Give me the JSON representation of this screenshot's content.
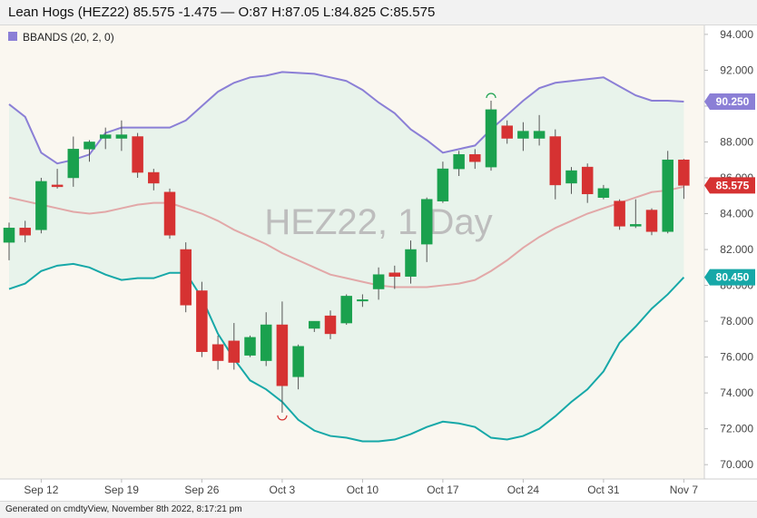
{
  "header": {
    "title": "Lean Hogs (HEZ22) 85.575 -1.475 — O:87 H:87.05 L:84.825 C:85.575"
  },
  "footer": {
    "text": "Generated on cmdtyView, November 8th 2022, 8:17:21 pm"
  },
  "watermark": "HEZ22, 1 Day",
  "legend": {
    "label": "BBANDS (20, 2, 0)",
    "swatch_color": "#8b7fd6"
  },
  "colors": {
    "up": "#1aa14e",
    "down": "#d63232",
    "upper_band": "#8b7fd6",
    "lower_band": "#16a8a8",
    "middle_band": "#e2a8a8",
    "band_fill": "#e4f2ea",
    "plot_bg": "#faf7f0",
    "wick": "#555555",
    "price_tag": "#d63232"
  },
  "price_tags": [
    {
      "value": 90.25,
      "label": "90.250",
      "color": "#8b7fd6"
    },
    {
      "value": 85.575,
      "label": "85.575",
      "color": "#d63232"
    },
    {
      "value": 80.45,
      "label": "80.450",
      "color": "#16a8a8"
    }
  ],
  "chart_data": {
    "type": "candlestick",
    "ylim": [
      69.2,
      94.5
    ],
    "y_ticks": [
      70,
      72,
      74,
      76,
      78,
      80,
      82,
      84,
      86,
      88,
      90,
      92,
      94
    ],
    "y_tick_labels": [
      "70.000",
      "72.000",
      "74.000",
      "76.000",
      "78.000",
      "80.000",
      "82.000",
      "84.000",
      "86.000",
      "88.000",
      "90.000",
      "92.000",
      "94.000"
    ],
    "x_tick_labels": [
      "Sep 12",
      "Sep 19",
      "Sep 26",
      "Oct 3",
      "Oct 10",
      "Oct 17",
      "Oct 24",
      "Oct 31",
      "Nov 7"
    ],
    "x_tick_dates": [
      "2022-09-12",
      "2022-09-19",
      "2022-09-26",
      "2022-10-03",
      "2022-10-10",
      "2022-10-17",
      "2022-10-24",
      "2022-10-31",
      "2022-11-07"
    ],
    "candles": [
      {
        "date": "2022-09-08",
        "o": 82.4,
        "h": 83.5,
        "l": 81.4,
        "c": 83.2
      },
      {
        "date": "2022-09-09",
        "o": 83.2,
        "h": 83.6,
        "l": 82.4,
        "c": 82.8
      },
      {
        "date": "2022-09-12",
        "o": 83.1,
        "h": 86.0,
        "l": 82.9,
        "c": 85.8
      },
      {
        "date": "2022-09-13",
        "o": 85.6,
        "h": 86.5,
        "l": 85.4,
        "c": 85.5
      },
      {
        "date": "2022-09-14",
        "o": 86.0,
        "h": 88.3,
        "l": 85.5,
        "c": 87.6
      },
      {
        "date": "2022-09-15",
        "o": 87.6,
        "h": 88.1,
        "l": 86.9,
        "c": 88.0
      },
      {
        "date": "2022-09-16",
        "o": 88.2,
        "h": 88.8,
        "l": 87.6,
        "c": 88.4
      },
      {
        "date": "2022-09-19",
        "o": 88.2,
        "h": 89.2,
        "l": 87.5,
        "c": 88.4
      },
      {
        "date": "2022-09-20",
        "o": 88.3,
        "h": 88.5,
        "l": 86.0,
        "c": 86.3
      },
      {
        "date": "2022-09-21",
        "o": 86.3,
        "h": 86.5,
        "l": 85.3,
        "c": 85.7
      },
      {
        "date": "2022-09-22",
        "o": 85.2,
        "h": 85.4,
        "l": 82.6,
        "c": 82.8
      },
      {
        "date": "2022-09-23",
        "o": 82.0,
        "h": 82.4,
        "l": 78.5,
        "c": 78.9
      },
      {
        "date": "2022-09-26",
        "o": 79.7,
        "h": 80.2,
        "l": 76.0,
        "c": 76.3
      },
      {
        "date": "2022-09-27",
        "o": 76.7,
        "h": 77.2,
        "l": 75.3,
        "c": 75.8
      },
      {
        "date": "2022-09-28",
        "o": 76.9,
        "h": 77.9,
        "l": 75.3,
        "c": 75.7
      },
      {
        "date": "2022-09-29",
        "o": 76.1,
        "h": 77.2,
        "l": 76.0,
        "c": 77.1
      },
      {
        "date": "2022-09-30",
        "o": 75.8,
        "h": 78.5,
        "l": 75.5,
        "c": 77.8
      },
      {
        "date": "2022-10-03",
        "o": 77.8,
        "h": 79.1,
        "l": 72.9,
        "c": 74.4
      },
      {
        "date": "2022-10-04",
        "o": 74.9,
        "h": 76.7,
        "l": 74.2,
        "c": 76.6
      },
      {
        "date": "2022-10-05",
        "o": 77.6,
        "h": 78.0,
        "l": 77.4,
        "c": 78.0
      },
      {
        "date": "2022-10-06",
        "o": 78.3,
        "h": 78.6,
        "l": 77.0,
        "c": 77.3
      },
      {
        "date": "2022-10-07",
        "o": 77.9,
        "h": 79.5,
        "l": 77.8,
        "c": 79.4
      },
      {
        "date": "2022-10-10",
        "o": 79.2,
        "h": 79.5,
        "l": 78.8,
        "c": 79.2
      },
      {
        "date": "2022-10-11",
        "o": 79.8,
        "h": 81.0,
        "l": 79.2,
        "c": 80.6
      },
      {
        "date": "2022-10-12",
        "o": 80.7,
        "h": 81.1,
        "l": 79.8,
        "c": 80.5
      },
      {
        "date": "2022-10-13",
        "o": 80.5,
        "h": 82.5,
        "l": 80.1,
        "c": 82.0
      },
      {
        "date": "2022-10-14",
        "o": 82.3,
        "h": 84.9,
        "l": 81.3,
        "c": 84.8
      },
      {
        "date": "2022-10-17",
        "o": 84.7,
        "h": 86.9,
        "l": 84.6,
        "c": 86.5
      },
      {
        "date": "2022-10-18",
        "o": 86.5,
        "h": 87.5,
        "l": 86.1,
        "c": 87.3
      },
      {
        "date": "2022-10-19",
        "o": 87.3,
        "h": 87.6,
        "l": 86.5,
        "c": 86.9
      },
      {
        "date": "2022-10-20",
        "o": 86.6,
        "h": 90.3,
        "l": 86.4,
        "c": 89.8
      },
      {
        "date": "2022-10-21",
        "o": 88.9,
        "h": 89.2,
        "l": 87.9,
        "c": 88.2
      },
      {
        "date": "2022-10-24",
        "o": 88.2,
        "h": 89.1,
        "l": 87.5,
        "c": 88.6
      },
      {
        "date": "2022-10-25",
        "o": 88.2,
        "h": 89.5,
        "l": 87.8,
        "c": 88.6
      },
      {
        "date": "2022-10-26",
        "o": 88.3,
        "h": 88.7,
        "l": 84.8,
        "c": 85.6
      },
      {
        "date": "2022-10-27",
        "o": 85.7,
        "h": 86.6,
        "l": 85.1,
        "c": 86.4
      },
      {
        "date": "2022-10-28",
        "o": 86.6,
        "h": 86.8,
        "l": 84.6,
        "c": 85.1
      },
      {
        "date": "2022-10-31",
        "o": 84.9,
        "h": 85.6,
        "l": 84.8,
        "c": 85.4
      },
      {
        "date": "2022-11-01",
        "o": 84.7,
        "h": 84.8,
        "l": 83.1,
        "c": 83.3
      },
      {
        "date": "2022-11-02",
        "o": 83.3,
        "h": 84.8,
        "l": 83.2,
        "c": 83.4
      },
      {
        "date": "2022-11-03",
        "o": 84.2,
        "h": 84.3,
        "l": 82.8,
        "c": 83.0
      },
      {
        "date": "2022-11-04",
        "o": 83.0,
        "h": 87.5,
        "l": 82.9,
        "c": 87.0
      },
      {
        "date": "2022-11-07",
        "o": 87.0,
        "h": 87.05,
        "l": 84.825,
        "c": 85.575
      }
    ],
    "bands": {
      "upper": [
        90.1,
        89.4,
        87.4,
        86.8,
        87.0,
        87.3,
        88.5,
        88.8,
        88.8,
        88.8,
        88.8,
        89.2,
        90.0,
        90.8,
        91.3,
        91.6,
        91.7,
        91.9,
        91.85,
        91.8,
        91.6,
        91.4,
        90.9,
        90.2,
        89.6,
        88.7,
        88.1,
        87.4,
        87.6,
        87.8,
        88.7,
        89.5,
        90.3,
        91.0,
        91.3,
        91.4,
        91.5,
        91.6,
        91.1,
        90.6,
        90.3,
        90.3,
        90.25
      ],
      "middle": [
        84.9,
        84.7,
        84.5,
        84.3,
        84.1,
        84.0,
        84.1,
        84.3,
        84.5,
        84.6,
        84.6,
        84.3,
        84.0,
        83.6,
        83.1,
        82.7,
        82.3,
        81.8,
        81.4,
        81.0,
        80.6,
        80.4,
        80.2,
        80.0,
        79.9,
        79.9,
        79.9,
        80.0,
        80.1,
        80.3,
        80.8,
        81.4,
        82.1,
        82.7,
        83.2,
        83.6,
        84.0,
        84.3,
        84.6,
        84.9,
        85.2,
        85.3,
        85.5
      ],
      "lower": [
        79.8,
        80.1,
        80.8,
        81.1,
        81.2,
        81.0,
        80.6,
        80.3,
        80.4,
        80.4,
        80.7,
        80.7,
        79.3,
        77.3,
        75.9,
        74.7,
        74.2,
        73.5,
        72.5,
        71.9,
        71.6,
        71.5,
        71.3,
        71.3,
        71.4,
        71.7,
        72.1,
        72.4,
        72.3,
        72.1,
        71.5,
        71.4,
        71.6,
        72.0,
        72.7,
        73.5,
        74.2,
        75.2,
        76.8,
        77.7,
        78.7,
        79.5,
        80.45
      ]
    }
  }
}
